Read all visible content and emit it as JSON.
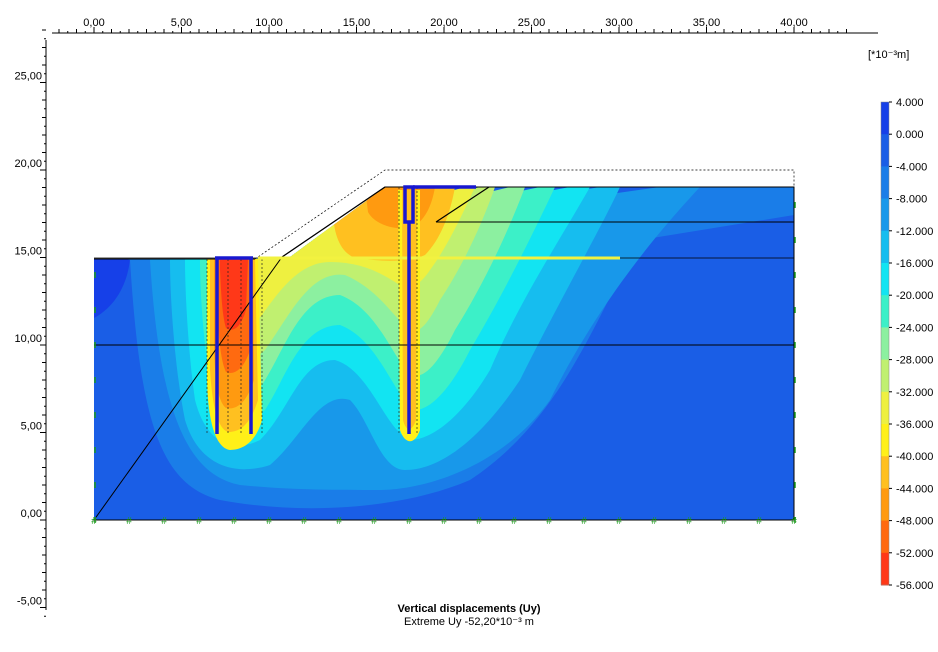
{
  "title": "Vertical displacements (Uy)",
  "subtitle": "Extreme Uy -52,20*10⁻³ m",
  "unit_label": "[*10⁻³m]",
  "x_axis": {
    "ticks": [
      "0,00",
      "5,00",
      "10,00",
      "15,00",
      "20,00",
      "25,00",
      "30,00",
      "35,00",
      "40,00"
    ],
    "range": [
      -2.3,
      43.2
    ]
  },
  "y_axis": {
    "ticks": [
      "25,00",
      "20,00",
      "15,00",
      "10,00",
      "5,00",
      "0,00",
      "-5,00"
    ],
    "range": [
      -5.5,
      28.0
    ]
  },
  "legend": {
    "levels": [
      "4.000",
      "0.000",
      "-4.000",
      "-8.000",
      "-12.000",
      "-16.000",
      "-20.000",
      "-24.000",
      "-28.000",
      "-32.000",
      "-36.000",
      "-40.000",
      "-44.000",
      "-48.000",
      "-52.000",
      "-56.000"
    ],
    "colors": [
      "#1640e8",
      "#1a5ee6",
      "#1a7de8",
      "#1898ea",
      "#16bdef",
      "#12e4f2",
      "#3cf0c8",
      "#8cf0a0",
      "#c0f070",
      "#eef040",
      "#fff018",
      "#ffc020",
      "#ff9a10",
      "#ff6a10",
      "#ff3818",
      "#ff0000"
    ]
  },
  "domain_color": "#1a5ee6",
  "structure_color": "#1818d0",
  "anchor_color": "#f2f240",
  "fixity_color": "#1a9a1a"
}
